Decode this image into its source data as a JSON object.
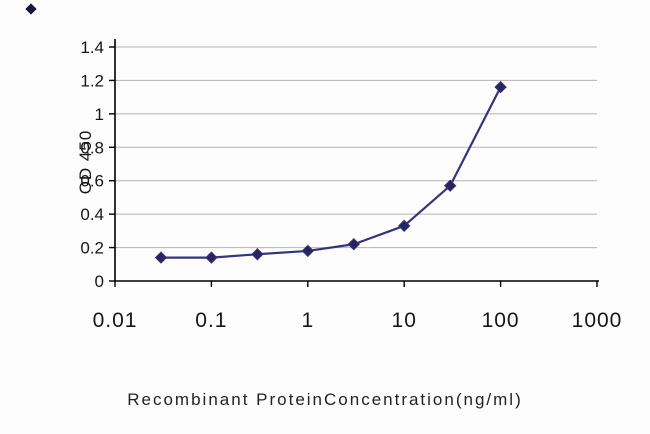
{
  "chart_data": {
    "type": "line",
    "title": "",
    "xlabel": "Recombinant ProteinConcentration(ng/ml)",
    "ylabel": "OD 450",
    "x_scale": "log",
    "xlim": [
      0.01,
      1000
    ],
    "ylim": [
      0,
      1.4
    ],
    "x": [
      0.03,
      0.1,
      0.3,
      1,
      3,
      10,
      30,
      100
    ],
    "values": [
      0.14,
      0.14,
      0.16,
      0.18,
      0.22,
      0.33,
      0.57,
      1.16
    ],
    "x_ticks": [
      0.01,
      0.1,
      1,
      10,
      100,
      1000
    ],
    "x_tick_labels": [
      "0.01",
      "0.1",
      "1",
      "10",
      "100",
      "1000"
    ],
    "y_ticks": [
      0,
      0.2,
      0.4,
      0.6,
      0.8,
      1,
      1.2,
      1.4
    ],
    "y_tick_labels": [
      "0",
      "0.2",
      "0.4",
      "0.6",
      "0.8",
      "1",
      "1.2",
      "1.4"
    ],
    "grid": true,
    "legend": false,
    "marker": "diamond",
    "line_color": "#34347c",
    "marker_color": "#26265c",
    "grid_color": "#b3b3b3",
    "axis_color": "#000000",
    "tick_label_color": "#161616"
  }
}
